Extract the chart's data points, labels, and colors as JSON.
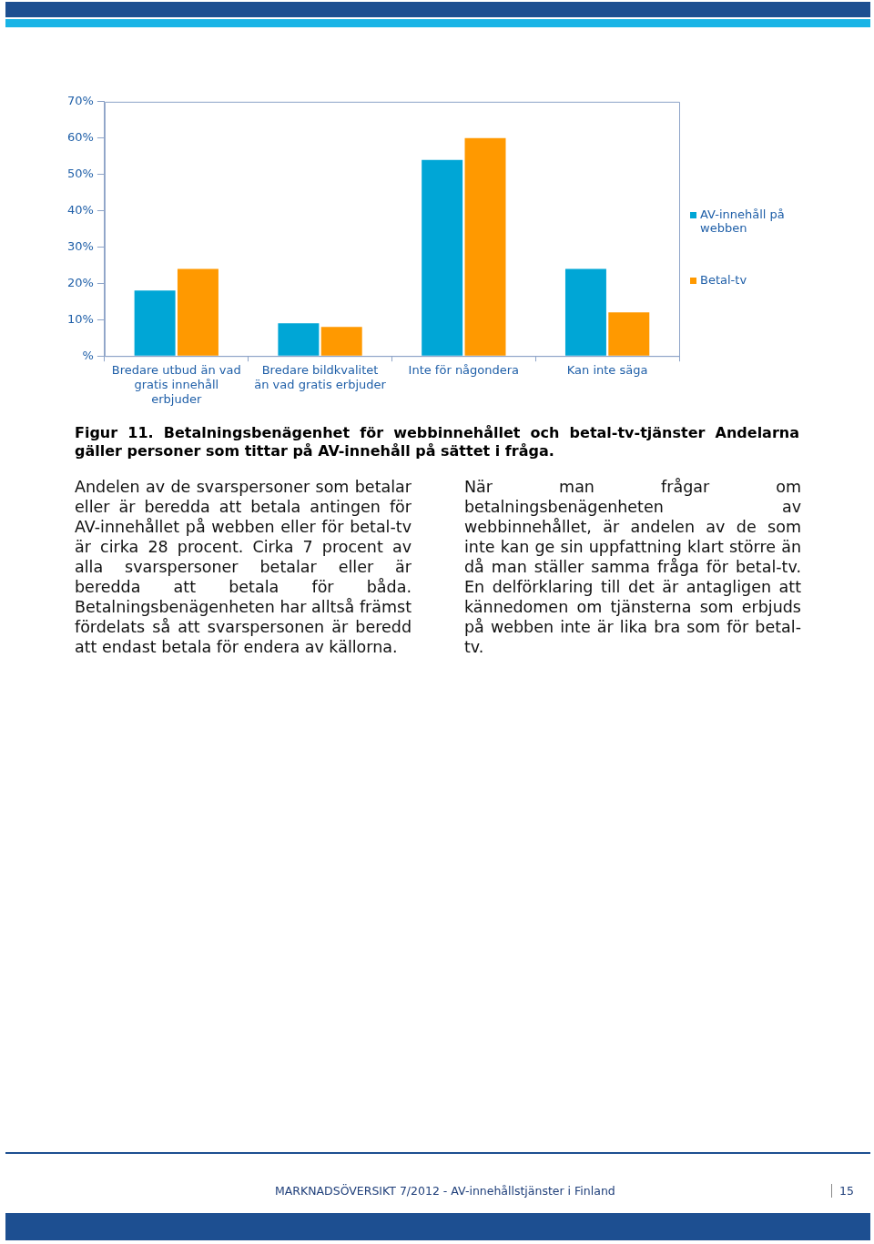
{
  "chart_data": {
    "type": "bar",
    "title": "Figur 11. Betalningsbenägenhet för webbinnehållet och betal-tv-tjänster Andelarna gäller personer som tittar på AV-innehåll på sättet i fråga.",
    "categories": [
      "Bredare utbud än vad gratis innehåll erbjuder",
      "Bredare bildkvalitet än vad gratis erbjuder",
      "Inte för någondera",
      "Kan inte säga"
    ],
    "series": [
      {
        "name": "AV-innehåll på webben",
        "color": "#00a6d6",
        "values": [
          18,
          9,
          54,
          24
        ]
      },
      {
        "name": "Betal-tv",
        "color": "#ff9900",
        "values": [
          24,
          8,
          60,
          12
        ]
      }
    ],
    "ylim": [
      0,
      70
    ],
    "yticks": [
      {
        "value": 0,
        "label": "%"
      },
      {
        "value": 10,
        "label": "10%"
      },
      {
        "value": 20,
        "label": "20%"
      },
      {
        "value": 30,
        "label": "30%"
      },
      {
        "value": 40,
        "label": "40%"
      },
      {
        "value": 50,
        "label": "50%"
      },
      {
        "value": 60,
        "label": "60%"
      },
      {
        "value": 70,
        "label": "70%"
      }
    ],
    "grid": false,
    "legend": "right",
    "annotations": [
      "Andelen av de svarspersoner som betalar eller är beredda att betala antingen för AV-innehållet på webben eller för betal-tv är cirka 28 procent. Cirka 7 procent av alla svarspersoner betalar eller är beredda att betala för båda. Betalningsbenägenheten har alltså främst fördelats så att svarspersonen är beredd att endast betala för endera av källorna.",
      "När man frågar om betalningsbenägenheten av webbinnehållet, är andelen av de som inte kan ge sin uppfattning klart större än då man ställer samma fråga för betal-tv. En delförklaring till det är antagligen att kännedomen om tjänsterna som erbjuds på webben inte är lika bra som för betal-tv.",
      "MARKNADSÖVERSIKT 7/2012 - AV-innehållstjänster i Finland",
      "15"
    ]
  }
}
